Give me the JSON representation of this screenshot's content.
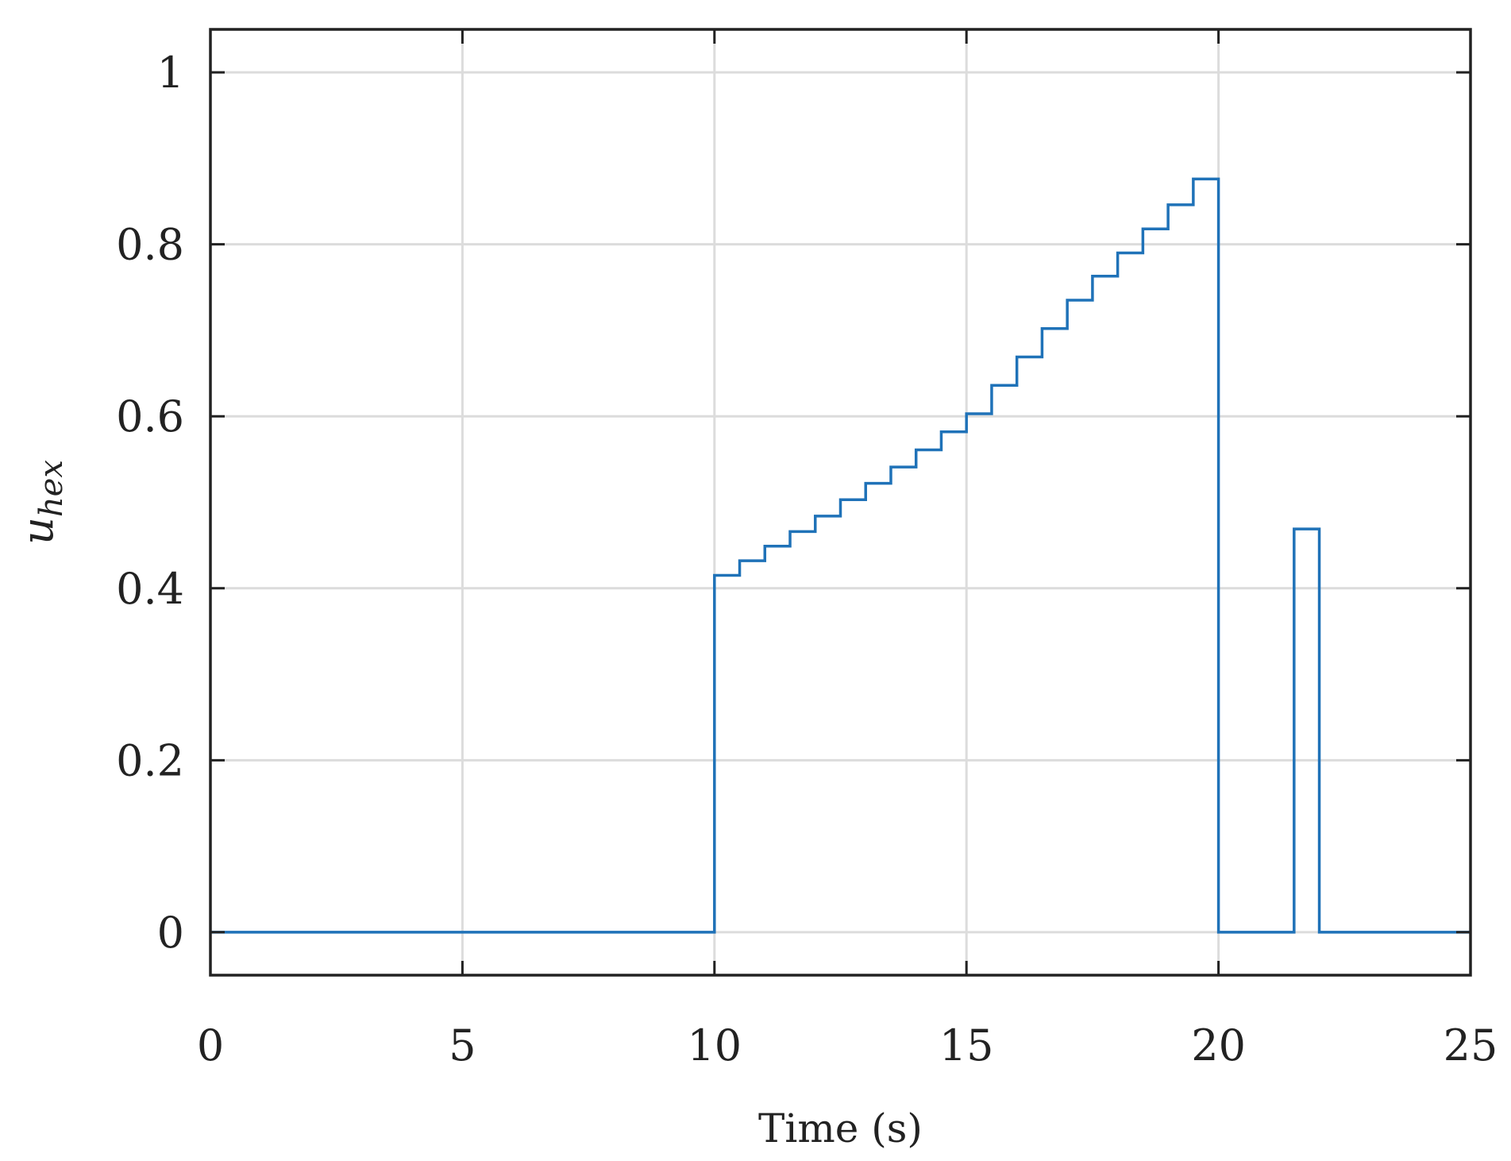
{
  "chart_data": {
    "type": "line",
    "step": true,
    "xlabel": "Time (s)",
    "ylabel": {
      "base": "u",
      "subscript": "hex"
    },
    "xlim": [
      0,
      25
    ],
    "ylim": [
      -0.05,
      1.05
    ],
    "xticks": [
      0,
      5,
      10,
      15,
      20,
      25
    ],
    "yticks": [
      0,
      0.2,
      0.4,
      0.6,
      0.8,
      1
    ],
    "xtick_labels": [
      "0",
      "5",
      "10",
      "15",
      "20",
      "25"
    ],
    "ytick_labels": [
      "0",
      "0.2",
      "0.4",
      "0.6",
      "0.8",
      "1"
    ],
    "grid": true,
    "colors": {
      "series": "#1f72b8",
      "grid": "#dcdcdc",
      "axes": "#222222"
    },
    "series": [
      {
        "points": [
          [
            0,
            0
          ],
          [
            10,
            0.415
          ],
          [
            10.5,
            0.432
          ],
          [
            11,
            0.449
          ],
          [
            11.5,
            0.466
          ],
          [
            12,
            0.484
          ],
          [
            12.5,
            0.503
          ],
          [
            13,
            0.522
          ],
          [
            13.5,
            0.541
          ],
          [
            14,
            0.561
          ],
          [
            14.5,
            0.582
          ],
          [
            15,
            0.603
          ],
          [
            15.5,
            0.636
          ],
          [
            16,
            0.669
          ],
          [
            16.5,
            0.702
          ],
          [
            17,
            0.735
          ],
          [
            17.5,
            0.763
          ],
          [
            18,
            0.79
          ],
          [
            18.5,
            0.818
          ],
          [
            19,
            0.846
          ],
          [
            19.5,
            0.876
          ],
          [
            20,
            0
          ],
          [
            21.5,
            0.469
          ],
          [
            22,
            0
          ],
          [
            25,
            0
          ]
        ]
      }
    ]
  }
}
